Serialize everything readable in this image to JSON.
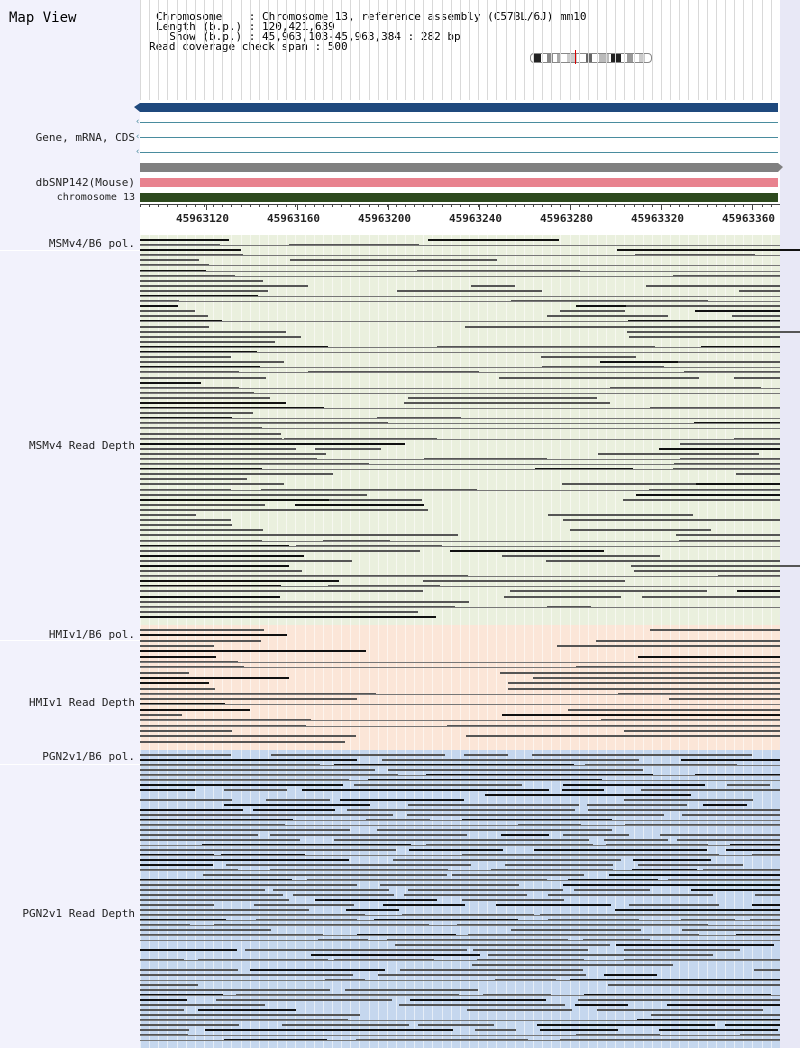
{
  "header": {
    "title": "Map View",
    "chromosome_line": "Chromosome    : Chromosome 13, reference assembly (C57BL/6J) mm10",
    "length_line": "Length (b.p.) : 120,421,639",
    "show_line": "  Show (b.p.) : 45,963,103-45,963,384 : 282 bp",
    "span_line": "Read coverage check span : 500"
  },
  "tracks": {
    "gene_label": "Gene, mRNA, CDS",
    "dbsnp_label": "dbSNP142(Mouse)",
    "chrom_label": "chromosome 13"
  },
  "axis": {
    "ticks": [
      "45963120",
      "45963160",
      "45963200",
      "45963240",
      "45963280",
      "45963320",
      "45963360"
    ]
  },
  "panels": {
    "msmv4_pol": "MSMv4/B6 pol.",
    "msmv4_depth": "MSMv4 Read Depth",
    "hmiv1_pol": "HMIv1/B6 pol.",
    "hmiv1_depth": "HMIv1 Read Depth",
    "pgn2v1_pol": "PGN2v1/B6 pol.",
    "pgn2v1_depth": "PGN2v1 Read Depth"
  },
  "colors": {
    "gene_bar": "#1f497d",
    "gene_line": "#4a8c9e",
    "dbsnp_gray": "#808080",
    "dbsnp_pink": "#e8828e",
    "chrom_green": "#2e4a1e",
    "msm_bg": "#eaf0de",
    "hmi_bg": "#fbe6d8",
    "pgn_bg": "#c5d7ee",
    "label_bg": "#f2f2fc"
  }
}
